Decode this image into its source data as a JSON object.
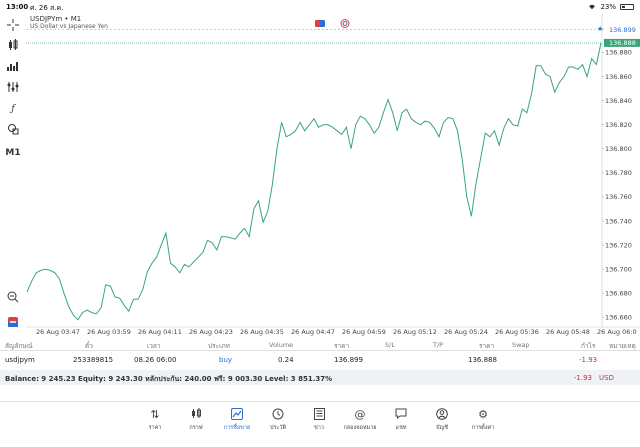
{
  "status_bar": {
    "time": "13:00",
    "date": "ศ. 26 ส.ค.",
    "battery": "23%"
  },
  "chart_header": {
    "title": "USDJPYm • M1",
    "subtitle": "US Dollar vs Japanese Yen"
  },
  "toolbar": {
    "timeframe": "M1"
  },
  "price_tags": {
    "ask": "136.899",
    "bid": "136.888"
  },
  "colors": {
    "line": "#3aa57a",
    "bid_tag": "#3aa57a",
    "ask_tag": "#2a6fd1",
    "negative": "#d32f2f",
    "active_nav": "#2a6fd1"
  },
  "chart_data": {
    "type": "line",
    "title": "USDJPYm • M1",
    "xlabel": "",
    "ylabel": "",
    "x_ticks": [
      "26 Aug 03:47",
      "26 Aug 03:59",
      "26 Aug 04:11",
      "26 Aug 04:23",
      "26 Aug 04:35",
      "26 Aug 04:47",
      "26 Aug 04:59",
      "26 Aug 05:12",
      "26 Aug 05:24",
      "26 Aug 05:36",
      "26 Aug 05:48",
      "26 Aug 06:0"
    ],
    "y_ticks": [
      "136.899",
      "136.880",
      "136.860",
      "136.840",
      "136.820",
      "136.800",
      "136.780",
      "136.760",
      "136.740",
      "136.720",
      "136.700",
      "136.680",
      "136.660"
    ],
    "ylim": [
      136.652,
      136.912
    ],
    "series": [
      {
        "values": [
          136.681,
          136.69,
          136.697,
          136.699,
          136.7,
          136.699,
          136.697,
          136.692,
          136.68,
          136.669,
          136.662,
          136.658,
          136.664,
          136.666,
          136.664,
          136.663,
          136.668,
          136.687,
          136.686,
          136.677,
          136.676,
          136.67,
          136.665,
          136.675,
          136.675,
          136.683,
          136.698,
          136.705,
          136.71,
          136.72,
          136.73,
          136.705,
          136.702,
          136.697,
          136.704,
          136.702,
          136.706,
          136.71,
          136.714,
          136.724,
          136.722,
          136.716,
          136.727,
          136.727,
          136.726,
          136.725,
          136.73,
          136.734,
          136.727,
          136.75,
          136.757,
          136.739,
          136.748,
          136.77,
          136.8,
          136.822,
          136.81,
          136.812,
          136.815,
          136.822,
          136.815,
          136.82,
          136.825,
          136.818,
          136.82,
          136.82,
          136.818,
          136.815,
          136.812,
          136.818,
          136.8,
          136.82,
          136.827,
          136.825,
          136.82,
          136.813,
          136.818,
          136.83,
          136.841,
          136.83,
          136.815,
          136.83,
          136.833,
          136.825,
          136.822,
          136.82,
          136.823,
          136.822,
          136.817,
          136.81,
          136.822,
          136.826,
          136.825,
          136.815,
          136.792,
          136.76,
          136.744,
          136.771,
          136.792,
          136.813,
          136.81,
          136.815,
          136.803,
          136.817,
          136.825,
          136.82,
          136.819,
          136.833,
          136.83,
          136.846,
          136.869,
          136.869,
          136.862,
          136.86,
          136.847,
          136.855,
          136.86,
          136.868,
          136.868,
          136.866,
          136.87,
          136.86,
          136.875,
          136.87,
          136.888
        ]
      }
    ]
  },
  "table": {
    "headers": [
      "สัญลักษณ์",
      "ตั๋ว",
      "เวลา",
      "ประเภท",
      "Volume",
      "ราคา",
      "S/L",
      "T/P",
      "ราคา",
      "Swap",
      "กำไร",
      "หมายเหตุ"
    ],
    "row": {
      "symbol": "usdjpym",
      "ticket": "253389815",
      "time": "08.26 06:00",
      "type": "buy",
      "volume": "0.24",
      "open_price": "136.899",
      "sl": "",
      "tp": "",
      "price": "136.888",
      "swap": "",
      "profit": "-1.93",
      "comment": ""
    },
    "balance_text": "Balance: 9 245.23 Equity: 9 243.30 หลักประกัน: 240.00 ฟรี: 9 003.30 Level: 3 851.37%",
    "balance_profit": "-1.93",
    "balance_currency": "USD"
  },
  "nav": {
    "items": [
      {
        "label": "ราคา",
        "icon": "arrows-updown-icon"
      },
      {
        "label": "กราฟ",
        "icon": "candles-icon"
      },
      {
        "label": "การซื้อขาย",
        "icon": "trend-icon"
      },
      {
        "label": "ประวัติ",
        "icon": "history-icon"
      },
      {
        "label": "ข่าว",
        "icon": "news-icon"
      },
      {
        "label": "กล่องจดหมาย",
        "icon": "at-icon"
      },
      {
        "label": "แชท",
        "icon": "chat-icon"
      },
      {
        "label": "บัญชี",
        "icon": "account-icon"
      },
      {
        "label": "การตั้งค่า",
        "icon": "settings-icon"
      }
    ],
    "active_index": 2
  }
}
